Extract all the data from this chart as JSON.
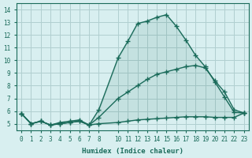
{
  "xlabel": "Humidex (Indice chaleur)",
  "ylabel": "",
  "hours": [
    0,
    1,
    2,
    3,
    4,
    5,
    6,
    7,
    8,
    10,
    11,
    12,
    13,
    14,
    15,
    16,
    17,
    18,
    19,
    20,
    21,
    22,
    23
  ],
  "max_values": [
    5.8,
    5.0,
    5.2,
    4.9,
    5.1,
    5.2,
    5.3,
    4.9,
    6.1,
    10.2,
    11.5,
    12.9,
    13.1,
    13.4,
    13.6,
    12.7,
    11.6,
    10.4,
    9.5,
    8.3,
    7.1,
    5.9,
    5.85
  ],
  "mean_values": [
    5.8,
    5.0,
    5.2,
    4.9,
    5.0,
    5.1,
    5.2,
    4.9,
    5.5,
    7.0,
    7.5,
    8.0,
    8.5,
    8.9,
    9.1,
    9.3,
    9.5,
    9.6,
    9.4,
    8.4,
    7.5,
    6.1,
    5.85
  ],
  "min_values": [
    5.8,
    5.0,
    5.2,
    4.9,
    5.0,
    5.1,
    5.2,
    4.9,
    5.0,
    5.1,
    5.2,
    5.3,
    5.35,
    5.4,
    5.45,
    5.5,
    5.55,
    5.55,
    5.55,
    5.5,
    5.5,
    5.5,
    5.85
  ],
  "ylim": [
    4.5,
    14.5
  ],
  "yticks": [
    5,
    6,
    7,
    8,
    9,
    10,
    11,
    12,
    13,
    14
  ],
  "xticks": [
    0,
    1,
    2,
    3,
    4,
    5,
    6,
    7,
    8,
    10,
    11,
    12,
    13,
    14,
    15,
    16,
    17,
    18,
    19,
    20,
    21,
    22,
    23
  ],
  "line_color": "#1a6b5a",
  "bg_color": "#d8eff0",
  "grid_color": "#b0cfd0",
  "marker": "+",
  "markersize": 4,
  "linewidth": 1.0
}
